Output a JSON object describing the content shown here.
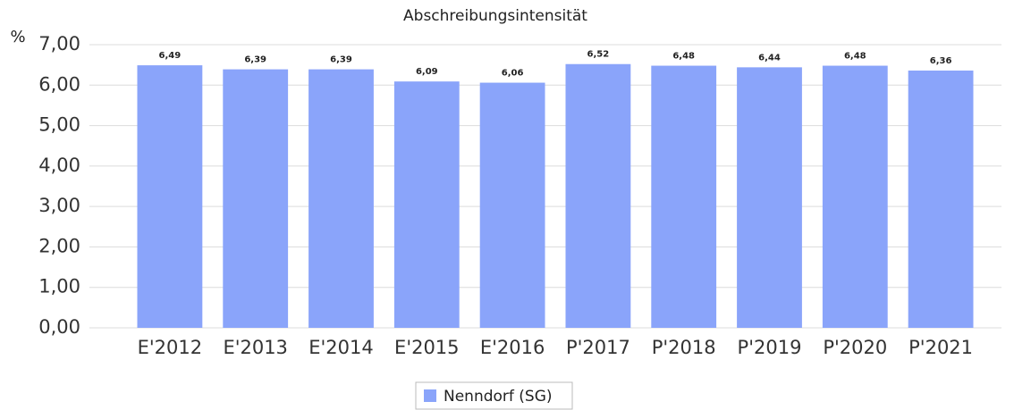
{
  "chart_data": {
    "type": "bar",
    "title": "Abschreibungsintensität",
    "y_label": "%",
    "categories": [
      "E'2012",
      "E'2013",
      "E'2014",
      "E'2015",
      "E'2016",
      "P'2017",
      "P'2018",
      "P'2019",
      "P'2020",
      "P'2021"
    ],
    "series": [
      {
        "name": "Nenndorf (SG)",
        "color": "#8aa4fa",
        "values": [
          6.49,
          6.39,
          6.39,
          6.09,
          6.06,
          6.52,
          6.48,
          6.44,
          6.48,
          6.36
        ],
        "value_labels": [
          "6,49",
          "6,39",
          "6,39",
          "6,09",
          "6,06",
          "6,52",
          "6,48",
          "6,44",
          "6,48",
          "6,36"
        ]
      }
    ],
    "ylim": [
      0,
      7
    ],
    "yticks": [
      {
        "value": 0,
        "label": "0,00"
      },
      {
        "value": 1,
        "label": "1,00"
      },
      {
        "value": 2,
        "label": "2,00"
      },
      {
        "value": 3,
        "label": "3,00"
      },
      {
        "value": 4,
        "label": "4,00"
      },
      {
        "value": 5,
        "label": "5,00"
      },
      {
        "value": 6,
        "label": "6,00"
      },
      {
        "value": 7,
        "label": "7,00"
      }
    ],
    "grid": true,
    "legend": "bottom"
  }
}
